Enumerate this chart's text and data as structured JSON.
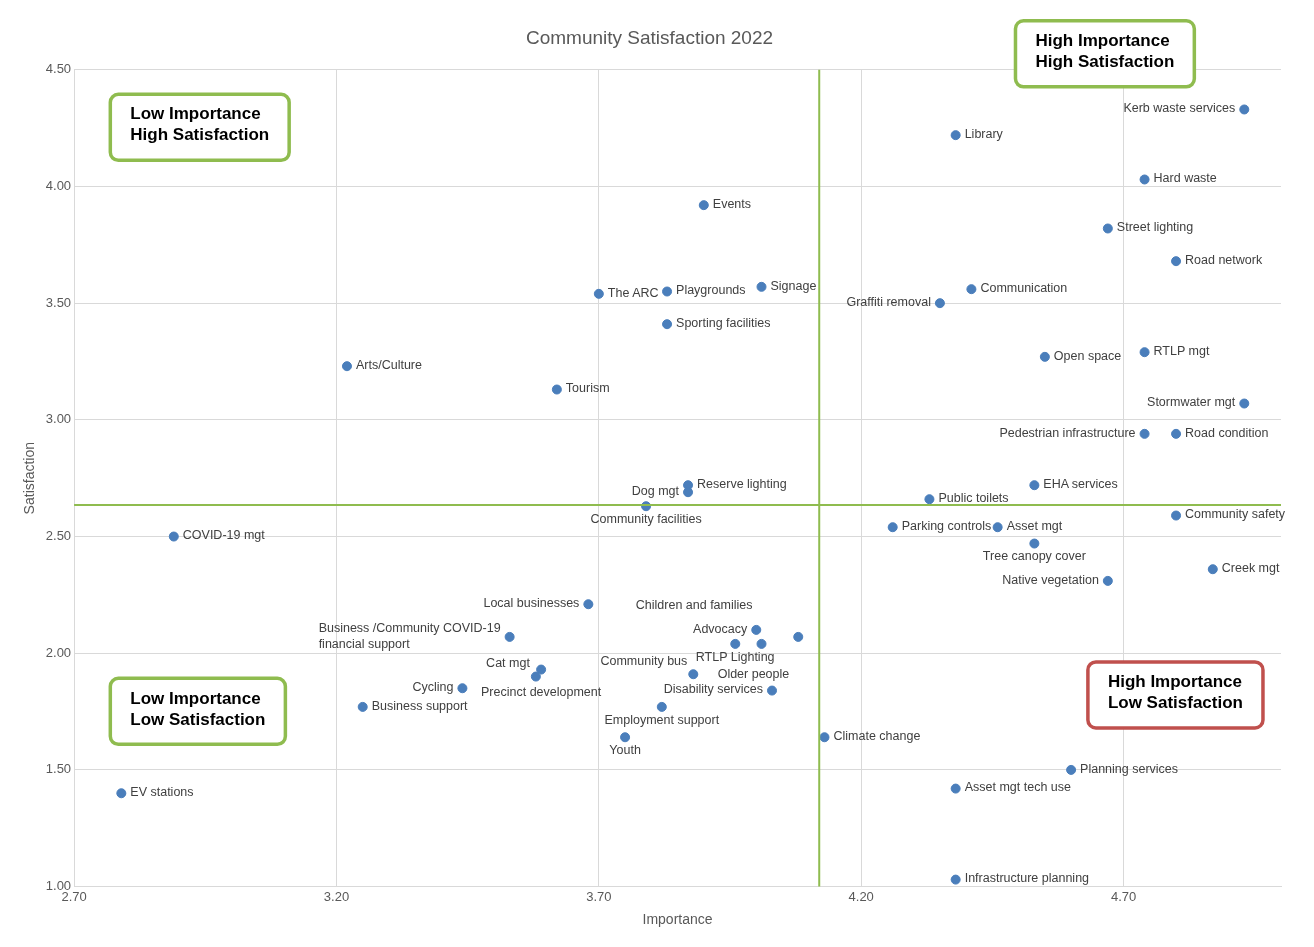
{
  "chart_data": {
    "type": "scatter",
    "title": "Community Satisfaction 2022",
    "xlabel": "Importance",
    "ylabel": "Satisfaction",
    "x": [
      4.93,
      4.38,
      4.74,
      3.9,
      4.67,
      4.8,
      4.01,
      4.41,
      3.83,
      3.7,
      4.35,
      3.83,
      4.74,
      4.55,
      3.22,
      3.62,
      4.93,
      4.74,
      4.8,
      3.87,
      3.87,
      4.53,
      4.33,
      3.79,
      4.8,
      4.26,
      4.46,
      2.89,
      4.53,
      4.87,
      4.67,
      3.68,
      4.0,
      4.08,
      3.53,
      3.96,
      4.01,
      3.88,
      3.59,
      3.58,
      3.44,
      4.03,
      3.25,
      3.82,
      3.75,
      4.13,
      4.6,
      4.38,
      2.79,
      4.38
    ],
    "values": [
      4.33,
      4.22,
      4.03,
      3.92,
      3.82,
      3.68,
      3.57,
      3.56,
      3.55,
      3.54,
      3.5,
      3.41,
      3.29,
      3.27,
      3.23,
      3.13,
      3.07,
      2.94,
      2.94,
      2.72,
      2.69,
      2.72,
      2.66,
      2.63,
      2.59,
      2.54,
      2.54,
      2.5,
      2.47,
      2.36,
      2.31,
      2.21,
      2.1,
      2.07,
      2.07,
      2.04,
      2.04,
      1.91,
      1.93,
      1.9,
      1.85,
      1.84,
      1.77,
      1.77,
      1.64,
      1.64,
      1.5,
      1.42,
      1.4,
      1.03
    ],
    "color": "#4a7ebb",
    "marker": "circle",
    "annotations": [
      {
        "text": "Kerb waste services",
        "x": 4.93,
        "y": 4.33
      },
      {
        "text": "Library",
        "x": 4.38,
        "y": 4.22
      },
      {
        "text": "Hard waste",
        "x": 4.74,
        "y": 4.03
      },
      {
        "text": "Events",
        "x": 3.9,
        "y": 3.92
      },
      {
        "text": "Street lighting",
        "x": 4.67,
        "y": 3.82
      },
      {
        "text": "Road network",
        "x": 4.8,
        "y": 3.68
      },
      {
        "text": "Signage",
        "x": 4.01,
        "y": 3.57
      },
      {
        "text": "Communication",
        "x": 4.41,
        "y": 3.56
      },
      {
        "text": "Playgrounds",
        "x": 3.83,
        "y": 3.55
      },
      {
        "text": "The ARC",
        "x": 3.7,
        "y": 3.54
      },
      {
        "text": "Graffiti removal",
        "x": 4.35,
        "y": 3.5
      },
      {
        "text": "Sporting facilities",
        "x": 3.83,
        "y": 3.41
      },
      {
        "text": "RTLP mgt",
        "x": 4.74,
        "y": 3.29
      },
      {
        "text": "Open space",
        "x": 4.55,
        "y": 3.27
      },
      {
        "text": "Arts/Culture",
        "x": 3.22,
        "y": 3.23
      },
      {
        "text": "Tourism",
        "x": 3.62,
        "y": 3.13
      },
      {
        "text": "Stormwater mgt",
        "x": 4.93,
        "y": 3.07
      },
      {
        "text": "Pedestrian infrastructure",
        "x": 4.74,
        "y": 2.94
      },
      {
        "text": "Road condition",
        "x": 4.8,
        "y": 2.94
      },
      {
        "text": "Reserve lighting",
        "x": 3.87,
        "y": 2.72
      },
      {
        "text": "Dog mgt",
        "x": 3.87,
        "y": 2.69
      },
      {
        "text": "EHA services",
        "x": 4.53,
        "y": 2.72
      },
      {
        "text": "Public toilets",
        "x": 4.33,
        "y": 2.66
      },
      {
        "text": "Community facilities",
        "x": 3.79,
        "y": 2.63
      },
      {
        "text": "Community safety",
        "x": 4.8,
        "y": 2.59
      },
      {
        "text": "Parking controls",
        "x": 4.26,
        "y": 2.54
      },
      {
        "text": "Asset mgt",
        "x": 4.46,
        "y": 2.54
      },
      {
        "text": "COVID-19 mgt",
        "x": 2.89,
        "y": 2.5
      },
      {
        "text": "Tree canopy cover",
        "x": 4.53,
        "y": 2.47
      },
      {
        "text": "Creek mgt",
        "x": 4.87,
        "y": 2.36
      },
      {
        "text": "Native vegetation",
        "x": 4.67,
        "y": 2.31
      },
      {
        "text": "Local businesses",
        "x": 3.68,
        "y": 2.21
      },
      {
        "text": "Advocacy",
        "x": 4.0,
        "y": 2.1
      },
      {
        "text": "Older people",
        "x": 4.08,
        "y": 2.07
      },
      {
        "text": "Business /Community COVID-19\nfinancial support",
        "x": 3.53,
        "y": 2.07
      },
      {
        "text": "RTLP Lighting",
        "x": 3.96,
        "y": 2.04
      },
      {
        "text": "Children and families",
        "x": 4.01,
        "y": 2.04
      },
      {
        "text": "Community bus",
        "x": 3.88,
        "y": 1.91
      },
      {
        "text": "Precinct development",
        "x": 3.59,
        "y": 1.93
      },
      {
        "text": "Cat mgt",
        "x": 3.58,
        "y": 1.9
      },
      {
        "text": "Cycling",
        "x": 3.44,
        "y": 1.85
      },
      {
        "text": "Disability services",
        "x": 4.03,
        "y": 1.84
      },
      {
        "text": "Business support",
        "x": 3.25,
        "y": 1.77
      },
      {
        "text": "Employment support",
        "x": 3.82,
        "y": 1.77
      },
      {
        "text": "Youth",
        "x": 3.75,
        "y": 1.64
      },
      {
        "text": "Climate change",
        "x": 4.13,
        "y": 1.64
      },
      {
        "text": "Planning services",
        "x": 4.6,
        "y": 1.5
      },
      {
        "text": "Asset mgt tech use",
        "x": 4.38,
        "y": 1.42
      },
      {
        "text": "EV stations",
        "x": 2.79,
        "y": 1.4
      },
      {
        "text": "Infrastructure planning",
        "x": 4.38,
        "y": 1.03
      },
      "Low Importance\nHigh Satisfaction",
      "High Importance\nHigh Satisfaction",
      "Low Importance\nLow Satisfaction",
      "High Importance\nLow Satisfaction"
    ],
    "xlim": [
      2.7,
      5.0
    ],
    "xticks": [
      {
        "value": 2.7,
        "label": "2.70"
      },
      {
        "value": 3.2,
        "label": "3.20"
      },
      {
        "value": 3.7,
        "label": "3.70"
      },
      {
        "value": 4.2,
        "label": "4.20"
      },
      {
        "value": 4.7,
        "label": "4.70"
      }
    ],
    "ylim": [
      1.0,
      4.5
    ],
    "yticks": [
      {
        "value": 1.0,
        "label": "1.00"
      },
      {
        "value": 1.5,
        "label": "1.50"
      },
      {
        "value": 2.0,
        "label": "2.00"
      },
      {
        "value": 2.5,
        "label": "2.50"
      },
      {
        "value": 3.0,
        "label": "3.00"
      },
      {
        "value": 3.5,
        "label": "3.50"
      },
      {
        "value": 4.0,
        "label": "4.00"
      },
      {
        "value": 4.5,
        "label": "4.50"
      }
    ],
    "ref_lines": [
      {
        "axis": "x",
        "value": 4.12,
        "color": "#8fbc4f"
      },
      {
        "axis": "y",
        "value": 2.635,
        "color": "#8fbc4f"
      }
    ],
    "grid": true,
    "legend": false
  }
}
